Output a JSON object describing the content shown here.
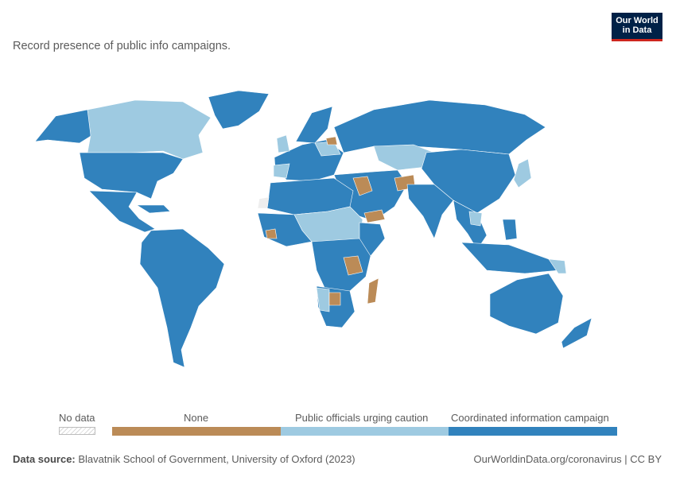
{
  "subtitle": "Record presence of public info campaigns.",
  "logo": {
    "line1": "Our World",
    "line2": "in Data"
  },
  "legend": {
    "no_data": "No data",
    "categories": [
      {
        "label": "None",
        "color": "#bb8b57"
      },
      {
        "label": "Public officials urging caution",
        "color": "#9ecae1"
      },
      {
        "label": "Coordinated information campaign",
        "color": "#3182bd"
      }
    ]
  },
  "footer": {
    "source_label": "Data source:",
    "source_text": " Blavatnik School of Government, University of Oxford (2023)",
    "link": "OurWorldinData.org/coronavirus | CC BY"
  },
  "colors": {
    "none": "#bb8b57",
    "caution": "#9ecae1",
    "campaign": "#3182bd",
    "no_data": "#eeeeee"
  }
}
